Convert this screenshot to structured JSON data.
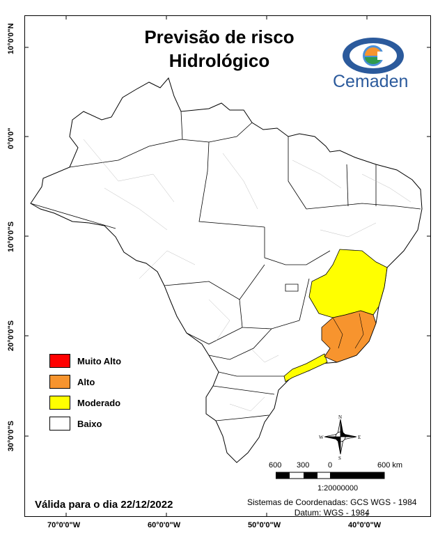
{
  "title_line1": "Previsão de risco",
  "title_line2": "Hidrológico",
  "logo": {
    "text": "Cemaden",
    "icon": "eye-logo-icon"
  },
  "axes": {
    "latitude_labels": [
      "10°0'0\"N",
      "0°0'0\"",
      "10°0'0\"S",
      "20°0'0\"S",
      "30°0'0\"S"
    ],
    "longitude_labels": [
      "70°0'0\"W",
      "60°0'0\"W",
      "50°0'0\"W",
      "40°0'0\"W"
    ]
  },
  "legend": [
    {
      "label": "Muito Alto",
      "color": "#ff0000"
    },
    {
      "label": "Alto",
      "color": "#f7942e"
    },
    {
      "label": "Moderado",
      "color": "#ffff00"
    },
    {
      "label": "Baixo",
      "color": "#ffffff"
    }
  ],
  "risk_areas": {
    "alto": "Espírito Santo / Rio de Janeiro / east Minas Gerais",
    "moderado": "southern Bahia / northeast Minas Gerais / coastal São Paulo"
  },
  "compass": {
    "n": "N",
    "s": "S",
    "e": "E",
    "w": "W"
  },
  "scale": {
    "ticks": [
      "600",
      "300",
      "0",
      "600 km"
    ],
    "ratio": "1:20000000"
  },
  "valid_text": "Válida para o dia 22/12/2022",
  "coordinate_system": "Sistemas de Coordenadas: GCS WGS - 1984",
  "datum": "Datum: WGS - 1984"
}
